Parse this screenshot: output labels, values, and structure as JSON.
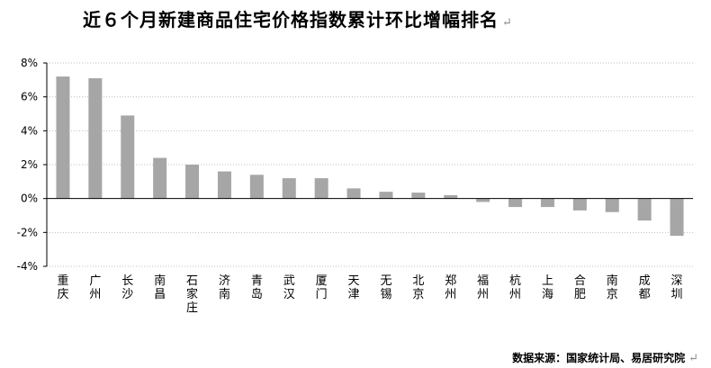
{
  "title": "近６个月新建商品住宅价格指数累计环比增幅排名",
  "mark": "↵",
  "source": "数据来源：国家统计局、易居研究院",
  "chart_data": {
    "type": "bar",
    "categories": [
      "重庆",
      "广州",
      "长沙",
      "南昌",
      "石家庄",
      "济南",
      "青岛",
      "武汉",
      "厦门",
      "天津",
      "无锡",
      "北京",
      "郑州",
      "福州",
      "杭州",
      "上海",
      "合肥",
      "南京",
      "成都",
      "深圳"
    ],
    "values": [
      7.2,
      7.1,
      4.9,
      2.4,
      2.0,
      1.6,
      1.4,
      1.2,
      1.2,
      0.6,
      0.4,
      0.35,
      0.2,
      -0.2,
      -0.5,
      -0.5,
      -0.7,
      -0.8,
      -1.3,
      -2.2
    ],
    "ylim": [
      -4,
      8
    ],
    "yticks": [
      "8%",
      "6%",
      "4%",
      "2%",
      "0%",
      "-2%",
      "-4%"
    ],
    "ytick_values": [
      8,
      6,
      4,
      2,
      0,
      -2,
      -4
    ],
    "grid": true,
    "bar_color": "#a6a6a6",
    "grid_color": "#bfbfbf",
    "axis_color": "#000000"
  }
}
